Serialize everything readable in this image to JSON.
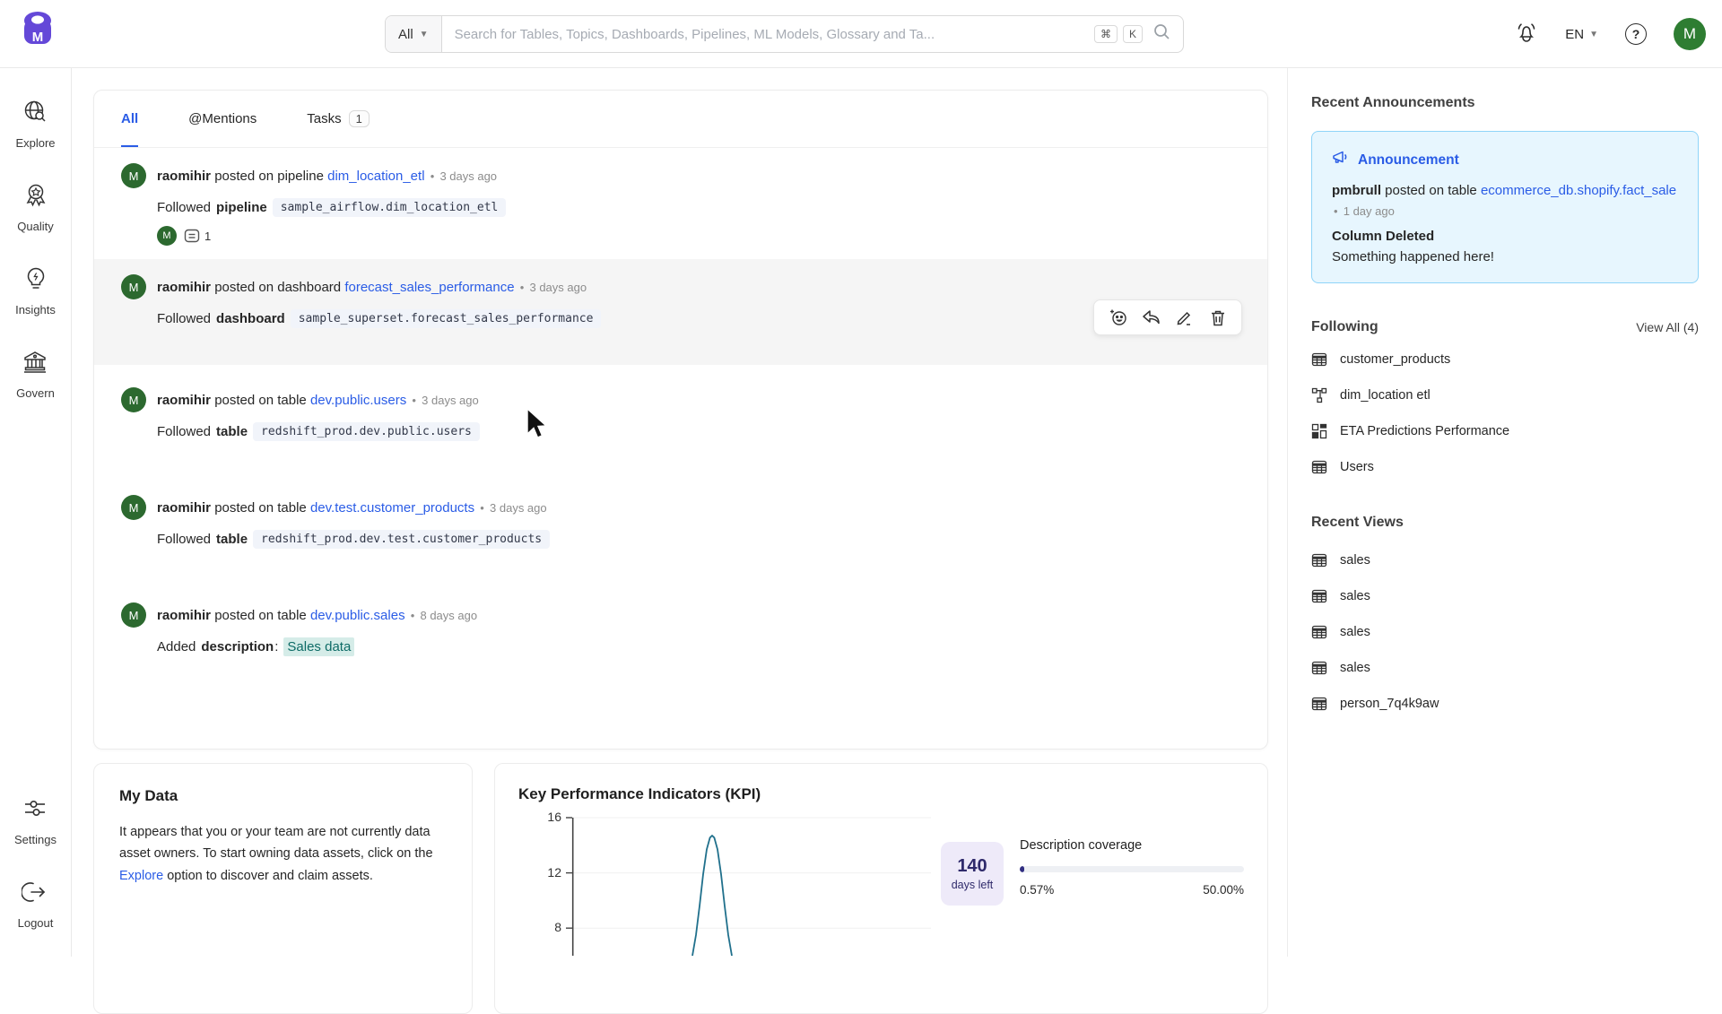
{
  "ui": {
    "dot": "•",
    "colon": ":"
  },
  "topbar": {
    "search_filter": "All",
    "search_placeholder": "Search for Tables, Topics, Dashboards, Pipelines, ML Models, Glossary and Ta...",
    "kbd_cmd": "⌘",
    "kbd_k": "K",
    "language": "EN",
    "avatar_initial": "M"
  },
  "sidebar": {
    "items": [
      {
        "label": "Explore",
        "icon": "explore-globe-search-icon"
      },
      {
        "label": "Quality",
        "icon": "medal-icon"
      },
      {
        "label": "Insights",
        "icon": "lightbulb-icon"
      },
      {
        "label": "Govern",
        "icon": "bank-icon"
      }
    ],
    "bottom_items": [
      {
        "label": "Settings",
        "icon": "sliders-icon"
      },
      {
        "label": "Logout",
        "icon": "logout-arrow-icon"
      }
    ]
  },
  "feed": {
    "tabs": [
      {
        "label": "All"
      },
      {
        "label": "@Mentions"
      },
      {
        "label": "Tasks",
        "badge": "1"
      }
    ],
    "items": [
      {
        "avatar": "M",
        "user": "raomihir",
        "action": "posted on pipeline",
        "entity": "dim_location_etl",
        "time": "3 days ago",
        "verb": "Followed",
        "asset_type": "pipeline",
        "fqn": "sample_airflow.dim_location_etl",
        "reaction_avatar": "M",
        "comment_count": "1"
      },
      {
        "avatar": "M",
        "user": "raomihir",
        "action": "posted on dashboard",
        "entity": "forecast_sales_performance",
        "time": "3 days ago",
        "verb": "Followed",
        "asset_type": "dashboard",
        "fqn": "sample_superset.forecast_sales_performance"
      },
      {
        "avatar": "M",
        "user": "raomihir",
        "action": "posted on table",
        "entity": "dev.public.users",
        "time": "3 days ago",
        "verb": "Followed",
        "asset_type": "table",
        "fqn": "redshift_prod.dev.public.users"
      },
      {
        "avatar": "M",
        "user": "raomihir",
        "action": "posted on table",
        "entity": "dev.test.customer_products",
        "time": "3 days ago",
        "verb": "Followed",
        "asset_type": "table",
        "fqn": "redshift_prod.dev.test.customer_products"
      },
      {
        "avatar": "M",
        "user": "raomihir",
        "action": "posted on table",
        "entity": "dev.public.sales",
        "time": "8 days ago",
        "verb": "Added",
        "asset_type": "description",
        "highlight": "Sales data"
      }
    ]
  },
  "announcements": {
    "section_title": "Recent Announcements",
    "card": {
      "title": "Announcement",
      "user": "pmbrull",
      "action": "posted on table",
      "entity": "ecommerce_db.shopify.fact_sale",
      "time": "1 day ago",
      "headline": "Column Deleted",
      "body": "Something happened here!"
    }
  },
  "following": {
    "title": "Following",
    "view_all": "View All (4)",
    "items": [
      {
        "icon": "table-icon",
        "label": "customer_products"
      },
      {
        "icon": "pipeline-icon",
        "label": "dim_location etl"
      },
      {
        "icon": "ml-model-icon",
        "label": "ETA Predictions Performance"
      },
      {
        "icon": "table-icon",
        "label": "Users"
      }
    ]
  },
  "recent_views": {
    "title": "Recent Views",
    "items": [
      {
        "icon": "table-icon",
        "label": "sales"
      },
      {
        "icon": "table-icon",
        "label": "sales"
      },
      {
        "icon": "table-icon",
        "label": "sales"
      },
      {
        "icon": "table-icon",
        "label": "sales"
      },
      {
        "icon": "table-icon",
        "label": "person_7q4k9aw"
      }
    ]
  },
  "my_data": {
    "title": "My Data",
    "body_before_link": "It appears that you or your team are not currently data asset owners. To start owning data assets, click on the ",
    "link": "Explore",
    "body_after_link": " option to discover and claim assets."
  },
  "kpi": {
    "title": "Key Performance Indicators (KPI)",
    "days_left_value": "140",
    "days_left_label": "days left",
    "coverage_label": "Description coverage",
    "coverage_current": "0.57%",
    "coverage_target": "50.00%"
  },
  "chart_data": {
    "type": "line",
    "title": "Key Performance Indicators (KPI)",
    "xlabel": "",
    "ylabel": "",
    "ylim": [
      6,
      16
    ],
    "yticks": [
      16,
      12,
      8
    ],
    "grid": true,
    "legend": "none",
    "series": [
      {
        "name": "KPI",
        "color": "#20708c",
        "points": [
          [
            33.5,
            6.0
          ],
          [
            34.5,
            7.5
          ],
          [
            35.5,
            9.6
          ],
          [
            36.5,
            11.9
          ],
          [
            37.5,
            13.7
          ],
          [
            38.4,
            14.55
          ],
          [
            39.0,
            14.7
          ],
          [
            39.6,
            14.55
          ],
          [
            40.5,
            13.7
          ],
          [
            41.5,
            11.9
          ],
          [
            42.5,
            9.6
          ],
          [
            43.5,
            7.5
          ],
          [
            44.5,
            6.0
          ]
        ]
      }
    ],
    "note": "x values are percent of plot width; chart bottom is clipped by the viewport"
  }
}
